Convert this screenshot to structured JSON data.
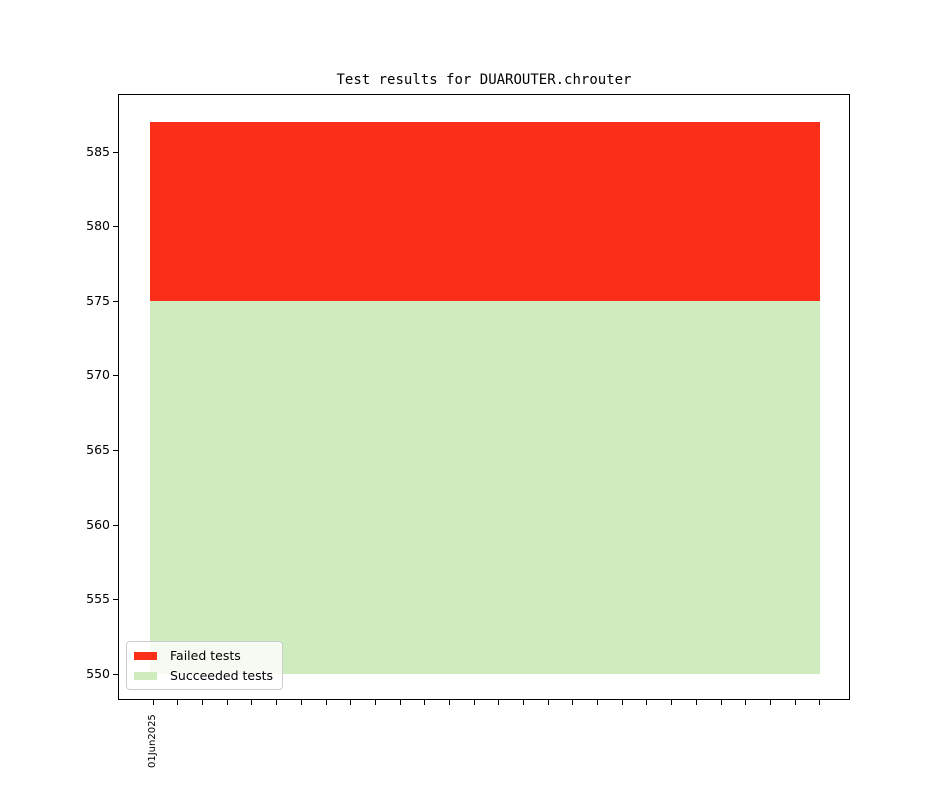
{
  "chart_data": {
    "type": "bar",
    "stacked": true,
    "title": "Test results for DUAROUTER.chrouter",
    "categories": [
      "01Jun2025"
    ],
    "series": [
      {
        "name": "Succeeded tests",
        "values": [
          575
        ],
        "color": "#ceecbe",
        "visible_span": [
          550,
          575
        ]
      },
      {
        "name": "Failed tests",
        "values": [
          12
        ],
        "color": "#fa2e19",
        "visible_span": [
          575,
          587
        ]
      }
    ],
    "ylim": [
      548.3,
      588.8
    ],
    "yticks": [
      550,
      555,
      560,
      565,
      570,
      575,
      580,
      585
    ],
    "x_tick_count": 28,
    "x_tick_labels": [
      "01Jun2025"
    ],
    "grid": false,
    "legend": {
      "position": "lower left",
      "items": [
        {
          "label": "Failed tests",
          "color": "#fa2e19"
        },
        {
          "label": "Succeeded tests",
          "color": "#ceecbe"
        }
      ]
    }
  }
}
